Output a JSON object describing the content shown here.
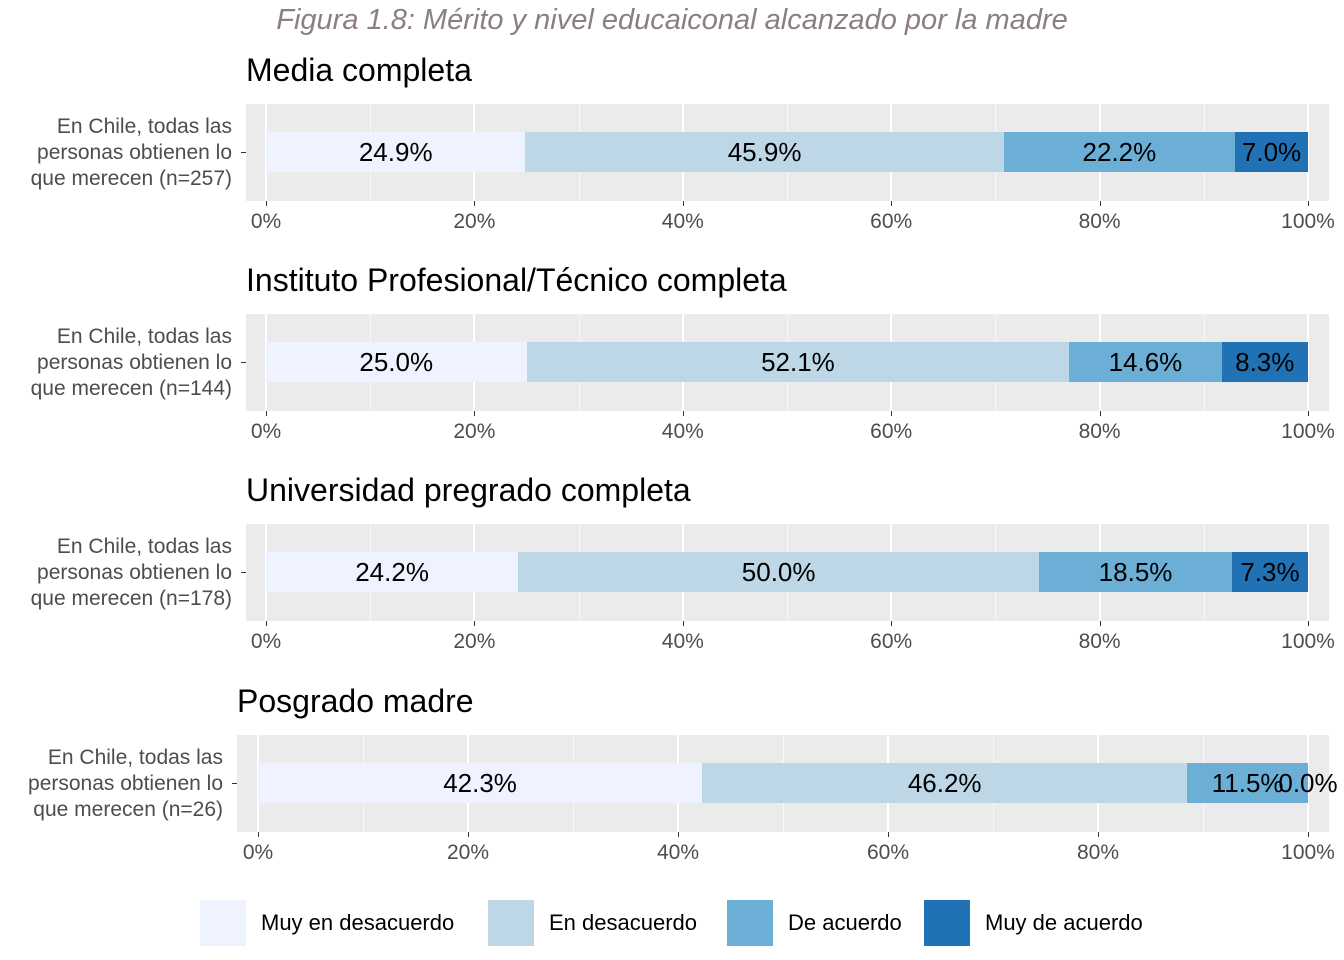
{
  "figure_title": "Figura 1.8: Mérito y nivel educaiconal alcanzado por la madre",
  "chart_data": {
    "type": "bar",
    "orientation": "horizontal",
    "stacked": true,
    "xlim": [
      0,
      100
    ],
    "x_ticks": [
      "0%",
      "20%",
      "40%",
      "60%",
      "80%",
      "100%"
    ],
    "grid": true,
    "legend_position": "bottom",
    "legend": [
      {
        "name": "Muy en desacuerdo",
        "color": "#eff3ff"
      },
      {
        "name": "En desacuerdo",
        "color": "#bdd7e7"
      },
      {
        "name": "De acuerdo",
        "color": "#6baed6"
      },
      {
        "name": "Muy de acuerdo",
        "color": "#2171b5"
      }
    ],
    "panels": [
      {
        "title": "Media completa",
        "category": "En Chile, todas las personas obtienen lo que merecen (n=257)",
        "category_lines": [
          "En Chile, todas las",
          "personas obtienen lo",
          "que merecen (n=257)"
        ],
        "values": [
          24.9,
          45.9,
          22.2,
          7.0
        ],
        "labels": [
          "24.9%",
          "45.9%",
          "22.2%",
          "7.0%"
        ]
      },
      {
        "title": "Instituto Profesional/Técnico completa",
        "category": "En Chile, todas las personas obtienen lo que merecen (n=144)",
        "category_lines": [
          "En Chile, todas las",
          "personas obtienen lo",
          "que merecen (n=144)"
        ],
        "values": [
          25.0,
          52.1,
          14.6,
          8.3
        ],
        "labels": [
          "25.0%",
          "52.1%",
          "14.6%",
          "8.3%"
        ]
      },
      {
        "title": "Universidad pregrado completa",
        "category": "En Chile, todas las personas obtienen lo que merecen (n=178)",
        "category_lines": [
          "En Chile, todas las",
          "personas obtienen lo",
          "que merecen (n=178)"
        ],
        "values": [
          24.2,
          50.0,
          18.5,
          7.3
        ],
        "labels": [
          "24.2%",
          "50.0%",
          "18.5%",
          "7.3%"
        ]
      },
      {
        "title": "Posgrado madre",
        "category": "En Chile, todas las personas obtienen lo que merecen (n=26)",
        "category_lines": [
          "En Chile, todas las",
          "personas obtienen lo",
          "que merecen (n=26)"
        ],
        "values": [
          42.3,
          46.2,
          11.5,
          0.0
        ],
        "labels": [
          "42.3%",
          "46.2%",
          "11.5%",
          "0.0%"
        ]
      }
    ]
  }
}
